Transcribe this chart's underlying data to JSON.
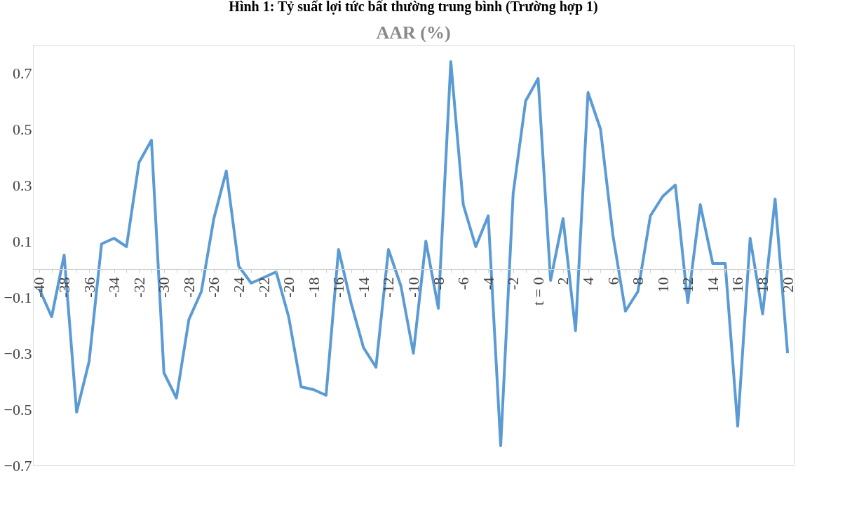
{
  "chart_data": {
    "type": "line",
    "title": "Hình 1: Tỷ suất lợi tức bất thường trung bình (Trường hợp 1)",
    "subtitle": "AAR (%)",
    "categories": [
      "-40",
      null,
      "-38",
      null,
      "-36",
      null,
      "-34",
      null,
      "-32",
      null,
      "-30",
      null,
      "-28",
      null,
      "-26",
      null,
      "-24",
      null,
      "-22",
      null,
      "-20",
      null,
      "-18",
      null,
      "-16",
      null,
      "-14",
      null,
      "-12",
      null,
      "-10",
      null,
      "-8",
      null,
      "-6",
      null,
      "-4",
      null,
      "-2",
      null,
      "t = 0",
      null,
      "2",
      null,
      "4",
      null,
      "6",
      null,
      "8",
      null,
      "10",
      null,
      "12",
      null,
      "14",
      null,
      "16",
      null,
      "18",
      null,
      "20"
    ],
    "series": [
      {
        "color": "#5b9bd5",
        "values": [
          -0.07,
          -0.17,
          0.05,
          -0.51,
          -0.33,
          0.09,
          0.11,
          0.08,
          0.38,
          0.46,
          -0.37,
          -0.46,
          -0.18,
          -0.08,
          0.18,
          0.35,
          0.01,
          -0.05,
          -0.03,
          -0.01,
          -0.17,
          -0.42,
          -0.43,
          -0.45,
          0.07,
          -0.12,
          -0.28,
          -0.35,
          0.07,
          -0.06,
          -0.3,
          0.1,
          -0.14,
          0.74,
          0.23,
          0.08,
          0.19,
          -0.63,
          0.27,
          0.6,
          0.68,
          -0.04,
          0.18,
          -0.22,
          0.63,
          0.5,
          0.12,
          -0.15,
          -0.08,
          0.19,
          0.26,
          0.3,
          -0.12,
          0.23,
          0.02,
          0.02,
          -0.56,
          0.11,
          -0.16,
          0.25,
          -0.3
        ]
      }
    ],
    "ylim": [
      -0.7,
      0.8
    ],
    "yticks": [
      -0.7,
      -0.5,
      -0.3,
      -0.1,
      0.1,
      0.3,
      0.5,
      0.7
    ],
    "grid": false,
    "legend": false,
    "marker": "none",
    "line_style": "solid"
  }
}
